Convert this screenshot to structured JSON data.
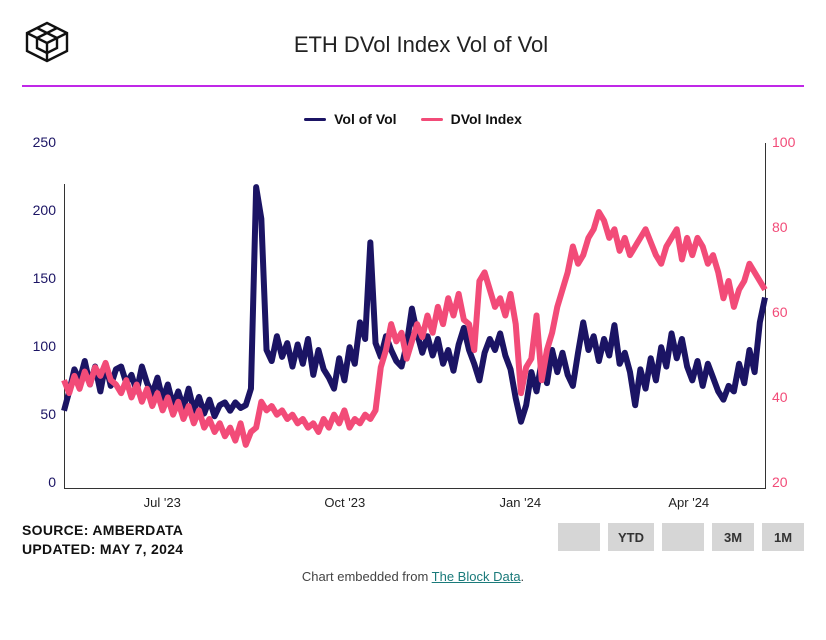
{
  "title": "ETH DVol Index Vol of Vol",
  "accent_color": "#c028e8",
  "logo_stroke": "#111111",
  "legend": [
    {
      "label": "Vol of Vol",
      "color": "#1b1464"
    },
    {
      "label": "DVol Index",
      "color": "#f24b78"
    }
  ],
  "left_axis": {
    "color": "#1b1464",
    "min": 0,
    "max": 250,
    "step": 50,
    "ticks": [
      "250",
      "200",
      "150",
      "100",
      "50",
      "0"
    ]
  },
  "right_axis": {
    "color": "#f24b78",
    "min": 20,
    "max": 100,
    "step": 20,
    "ticks": [
      "100",
      "80",
      "60",
      "40",
      "20"
    ]
  },
  "x_axis": {
    "labels": [
      {
        "label": "Jul '23",
        "pos": 0.14
      },
      {
        "label": "Oct '23",
        "pos": 0.4
      },
      {
        "label": "Jan '24",
        "pos": 0.65
      },
      {
        "label": "Apr '24",
        "pos": 0.89
      }
    ]
  },
  "chart": {
    "type": "line",
    "line_width": 2,
    "background_color": "#ffffff",
    "series": [
      {
        "name": "Vol of Vol",
        "axis": "left",
        "color": "#1b1464",
        "data": [
          56,
          70,
          86,
          78,
          92,
          75,
          88,
          70,
          90,
          74,
          86,
          88,
          76,
          82,
          70,
          88,
          76,
          68,
          80,
          64,
          75,
          60,
          70,
          58,
          72,
          56,
          66,
          54,
          64,
          52,
          60,
          62,
          56,
          62,
          58,
          60,
          72,
          218,
          195,
          100,
          92,
          110,
          95,
          105,
          88,
          104,
          90,
          108,
          82,
          100,
          86,
          80,
          72,
          94,
          78,
          102,
          90,
          120,
          108,
          178,
          105,
          95,
          110,
          100,
          92,
          88,
          104,
          130,
          112,
          98,
          110,
          96,
          108,
          90,
          100,
          85,
          104,
          116,
          100,
          90,
          78,
          98,
          108,
          100,
          112,
          96,
          86,
          65,
          48,
          60,
          84,
          70,
          92,
          76,
          100,
          84,
          98,
          82,
          74,
          98,
          120,
          100,
          110,
          92,
          108,
          96,
          118,
          90,
          98,
          84,
          60,
          86,
          72,
          94,
          78,
          102,
          88,
          112,
          94,
          108,
          88,
          78,
          92,
          74,
          90,
          80,
          70,
          64,
          74,
          70,
          90,
          76,
          100,
          84,
          120,
          138
        ]
      },
      {
        "name": "DVol Index",
        "axis": "right",
        "color": "#f24b78",
        "data": [
          45,
          42,
          46,
          43,
          47,
          44,
          48,
          46,
          49,
          45,
          44,
          42,
          45,
          41,
          44,
          40,
          43,
          39,
          42,
          38,
          41,
          37,
          40,
          36,
          39,
          35,
          38,
          34,
          36,
          33,
          35,
          32,
          34,
          31,
          35,
          30,
          33,
          34,
          40,
          38,
          39,
          37,
          38,
          36,
          37,
          35,
          36,
          34,
          35,
          33,
          36,
          34,
          37,
          35,
          38,
          34,
          36,
          35,
          37,
          36,
          38,
          48,
          52,
          58,
          54,
          56,
          50,
          54,
          58,
          55,
          60,
          56,
          62,
          58,
          64,
          60,
          65,
          59,
          58,
          52,
          68,
          70,
          66,
          62,
          64,
          60,
          65,
          58,
          42,
          48,
          50,
          60,
          45,
          52,
          56,
          62,
          66,
          70,
          76,
          72,
          74,
          78,
          80,
          84,
          82,
          78,
          80,
          75,
          78,
          74,
          76,
          78,
          80,
          77,
          74,
          72,
          76,
          78,
          80,
          73,
          78,
          74,
          78,
          76,
          72,
          74,
          70,
          64,
          68,
          62,
          66,
          68,
          72,
          70,
          68,
          66
        ]
      }
    ]
  },
  "source_label": "SOURCE:",
  "source_value": "AMBERDATA",
  "updated_label": "UPDATED:",
  "updated_value": "MAY 7, 2024",
  "range_buttons": [
    "",
    "YTD",
    "",
    "3M",
    "1M"
  ],
  "embed_prefix": "Chart embedded from ",
  "embed_link_text": "The Block Data",
  "embed_suffix": "."
}
